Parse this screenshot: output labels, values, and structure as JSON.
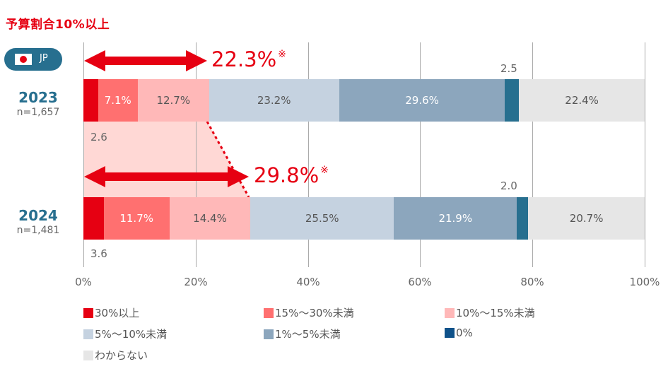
{
  "title": "予算割合10%以上",
  "badge": {
    "flag": "japan-flag",
    "label": "JP"
  },
  "axis": {
    "ticks": [
      "0%",
      "20%",
      "40%",
      "60%",
      "80%",
      "100%"
    ]
  },
  "rows": [
    {
      "year": "2023",
      "n": "n=1,657",
      "callout": "22.3%",
      "callout_mark": "※",
      "outside_labels": {
        "first": "2.6",
        "zero": "2.5"
      }
    },
    {
      "year": "2024",
      "n": "n=1,481",
      "callout": "29.8%",
      "callout_mark": "※",
      "outside_labels": {
        "first": "3.6",
        "zero": "2.0"
      }
    }
  ],
  "legend": [
    {
      "label": "30%以上",
      "color": "#e60012"
    },
    {
      "label": "15%〜30%未満",
      "color": "#ff7070"
    },
    {
      "label": "10%〜15%未満",
      "color": "#ffb8b8"
    },
    {
      "label": "5%〜10%未満",
      "color": "#c5d2e0"
    },
    {
      "label": "1%〜5%未満",
      "color": "#8ca6bd"
    },
    {
      "label": "0%",
      "color": "#0f528a"
    },
    {
      "label": "わからない",
      "color": "#e6e6e6"
    }
  ],
  "chart_data": {
    "type": "bar",
    "orientation": "horizontal-stacked-100",
    "title": "予算割合10%以上",
    "categories": [
      "2023 (n=1,657)",
      "2024 (n=1,481)"
    ],
    "series": [
      {
        "name": "30%以上",
        "values": [
          2.6,
          3.6
        ],
        "color": "#e60012"
      },
      {
        "name": "15%〜30%未満",
        "values": [
          7.1,
          11.7
        ],
        "color": "#ff7070"
      },
      {
        "name": "10%〜15%未満",
        "values": [
          12.7,
          14.4
        ],
        "color": "#ffb8b8"
      },
      {
        "name": "5%〜10%未満",
        "values": [
          23.2,
          25.5
        ],
        "color": "#c5d2e0"
      },
      {
        "name": "1%〜5%未満",
        "values": [
          29.6,
          21.9
        ],
        "color": "#8ca6bd"
      },
      {
        "name": "0%",
        "values": [
          2.5,
          2.0
        ],
        "color": "#276f8f"
      },
      {
        "name": "わからない",
        "values": [
          22.4,
          20.7
        ],
        "color": "#e6e6e6"
      }
    ],
    "annotations": [
      {
        "row": "2023",
        "text": "22.3%※",
        "meaning": "予算割合10%以上 合計"
      },
      {
        "row": "2024",
        "text": "29.8%※",
        "meaning": "予算割合10%以上 合計"
      }
    ],
    "xlim": [
      0,
      100
    ],
    "xticks": [
      "0%",
      "20%",
      "40%",
      "60%",
      "80%",
      "100%"
    ],
    "grid": true,
    "legend_position": "bottom"
  }
}
